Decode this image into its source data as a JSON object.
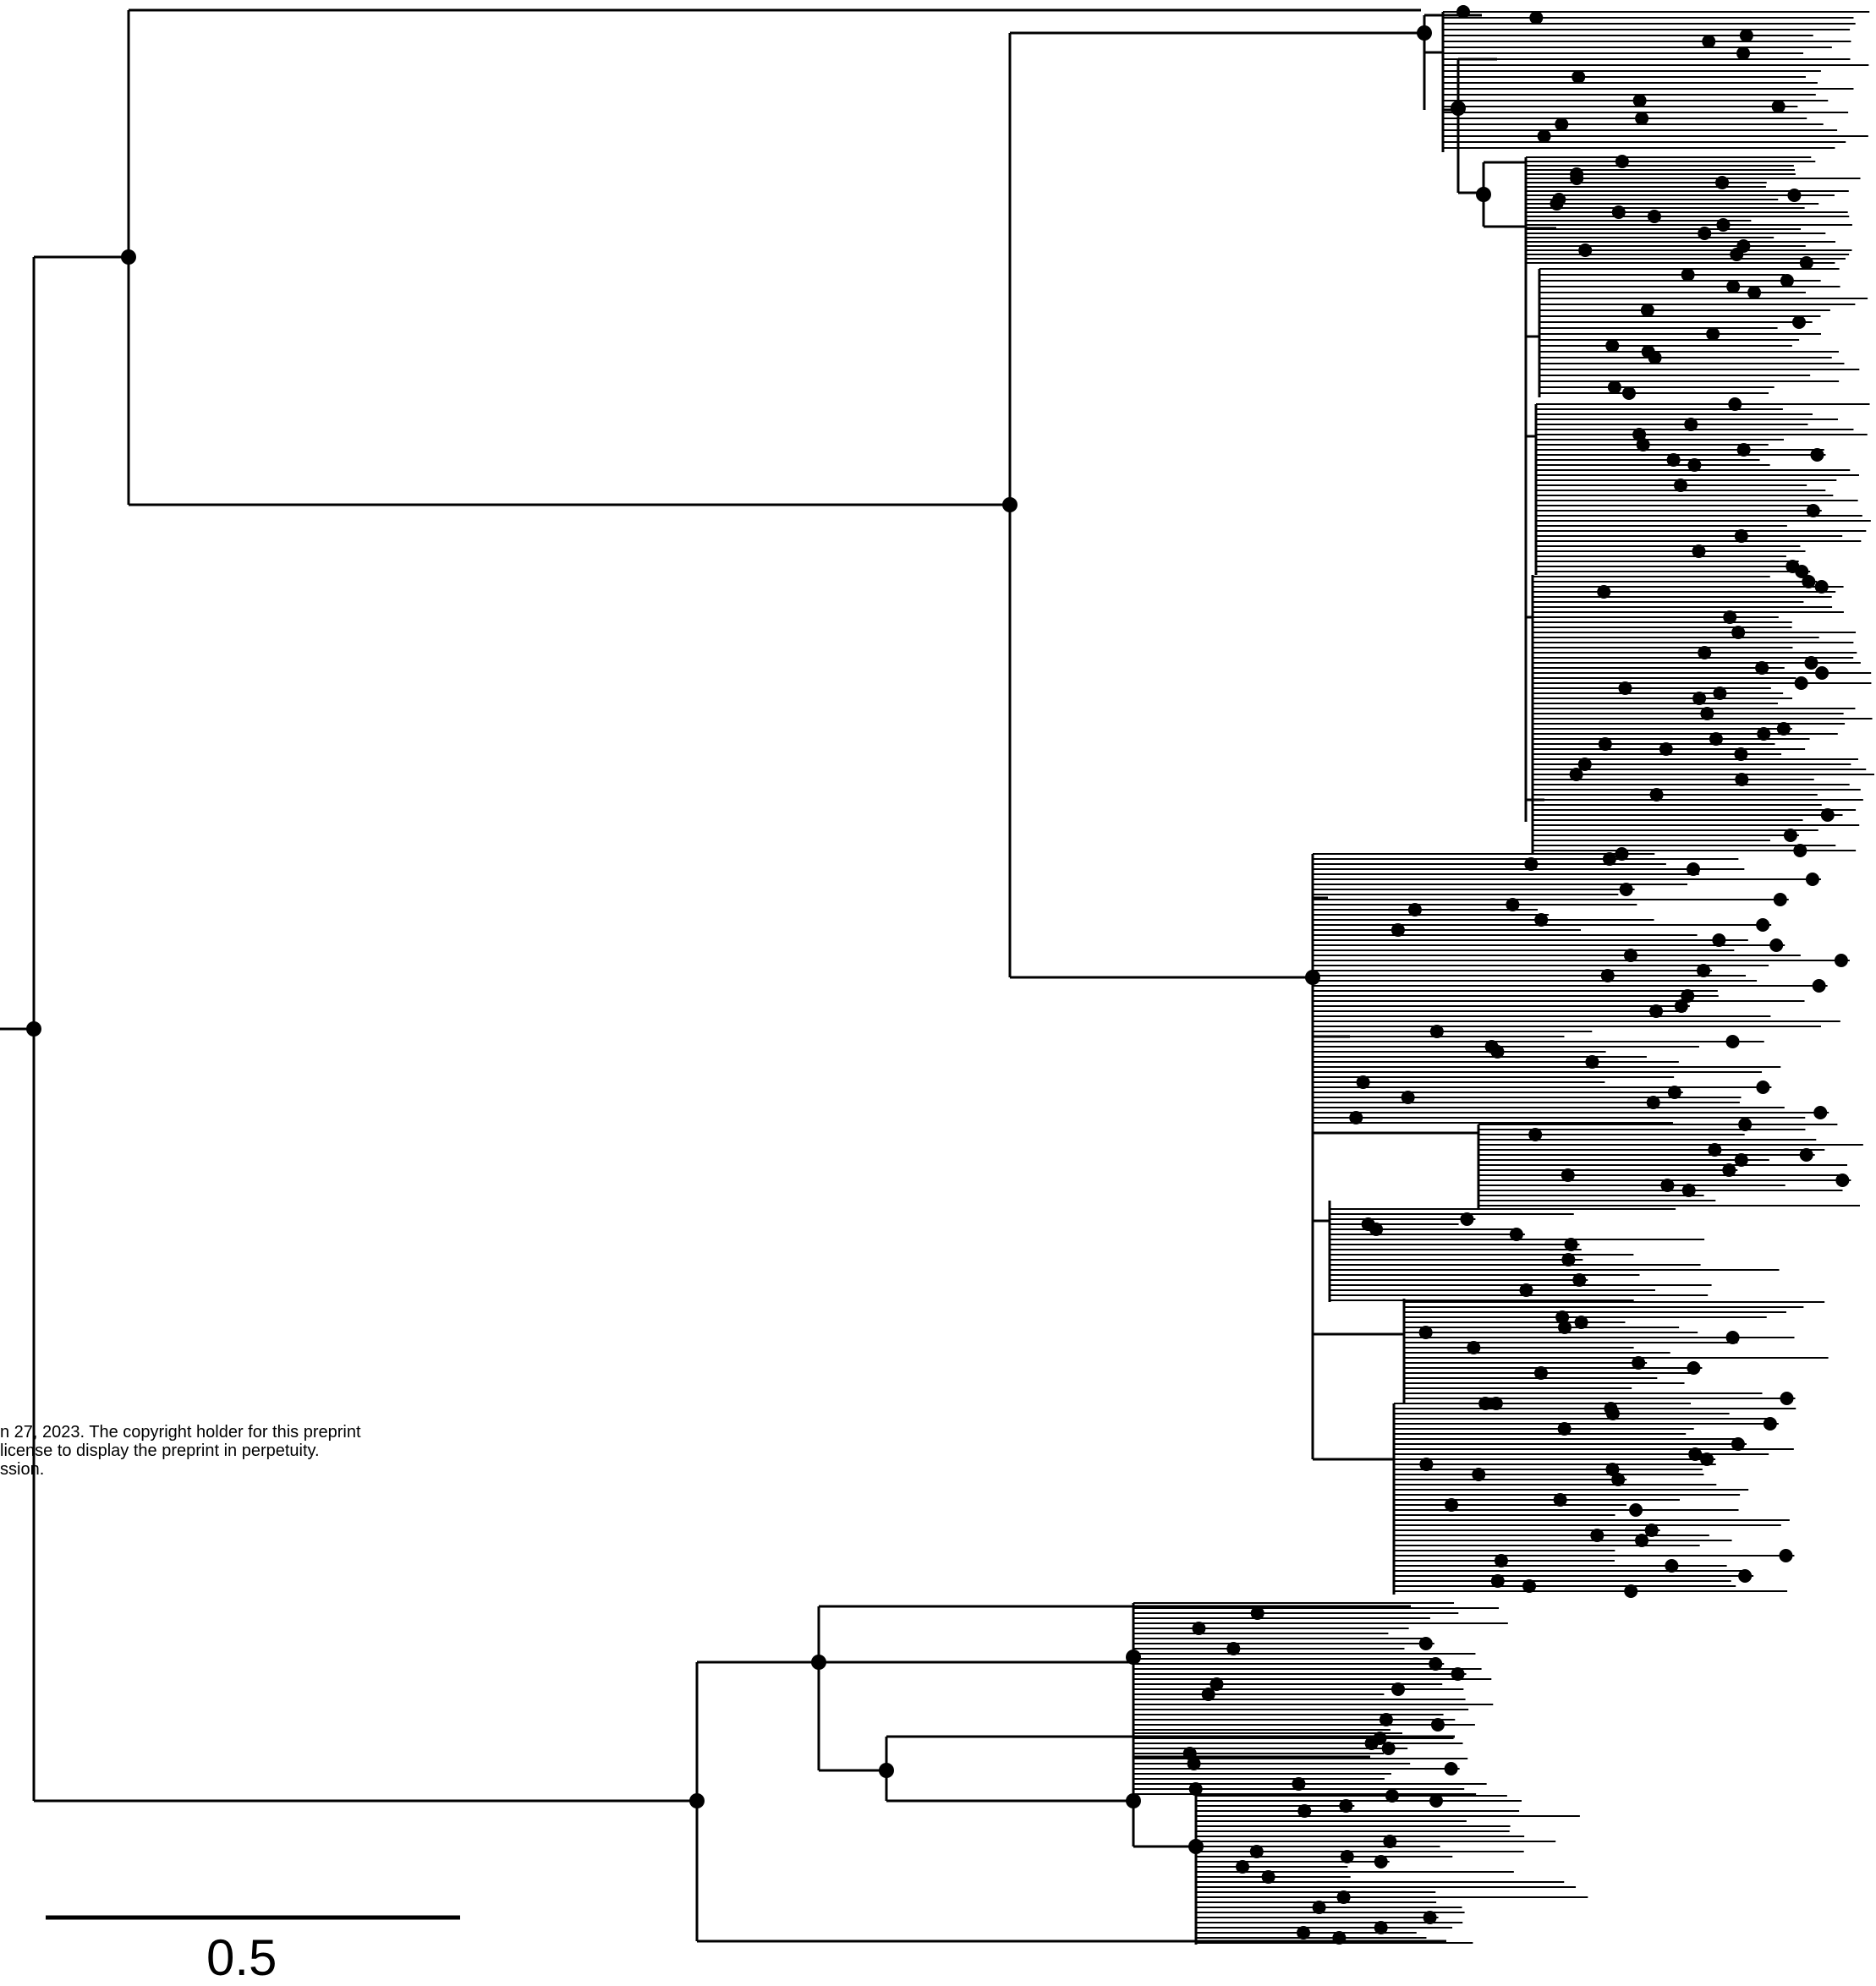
{
  "figure": {
    "type": "phylogenetic-tree",
    "line_color": "#000000",
    "node_color": "#000000",
    "background": "#ffffff"
  },
  "preprint_notice": {
    "line1": "n 27, 2023. The copyright holder for this preprint",
    "line2": "license to display the preprint in perpetuity.",
    "line3": "ssion."
  },
  "scale_bar": {
    "label": "0.5",
    "value": 0.5
  }
}
